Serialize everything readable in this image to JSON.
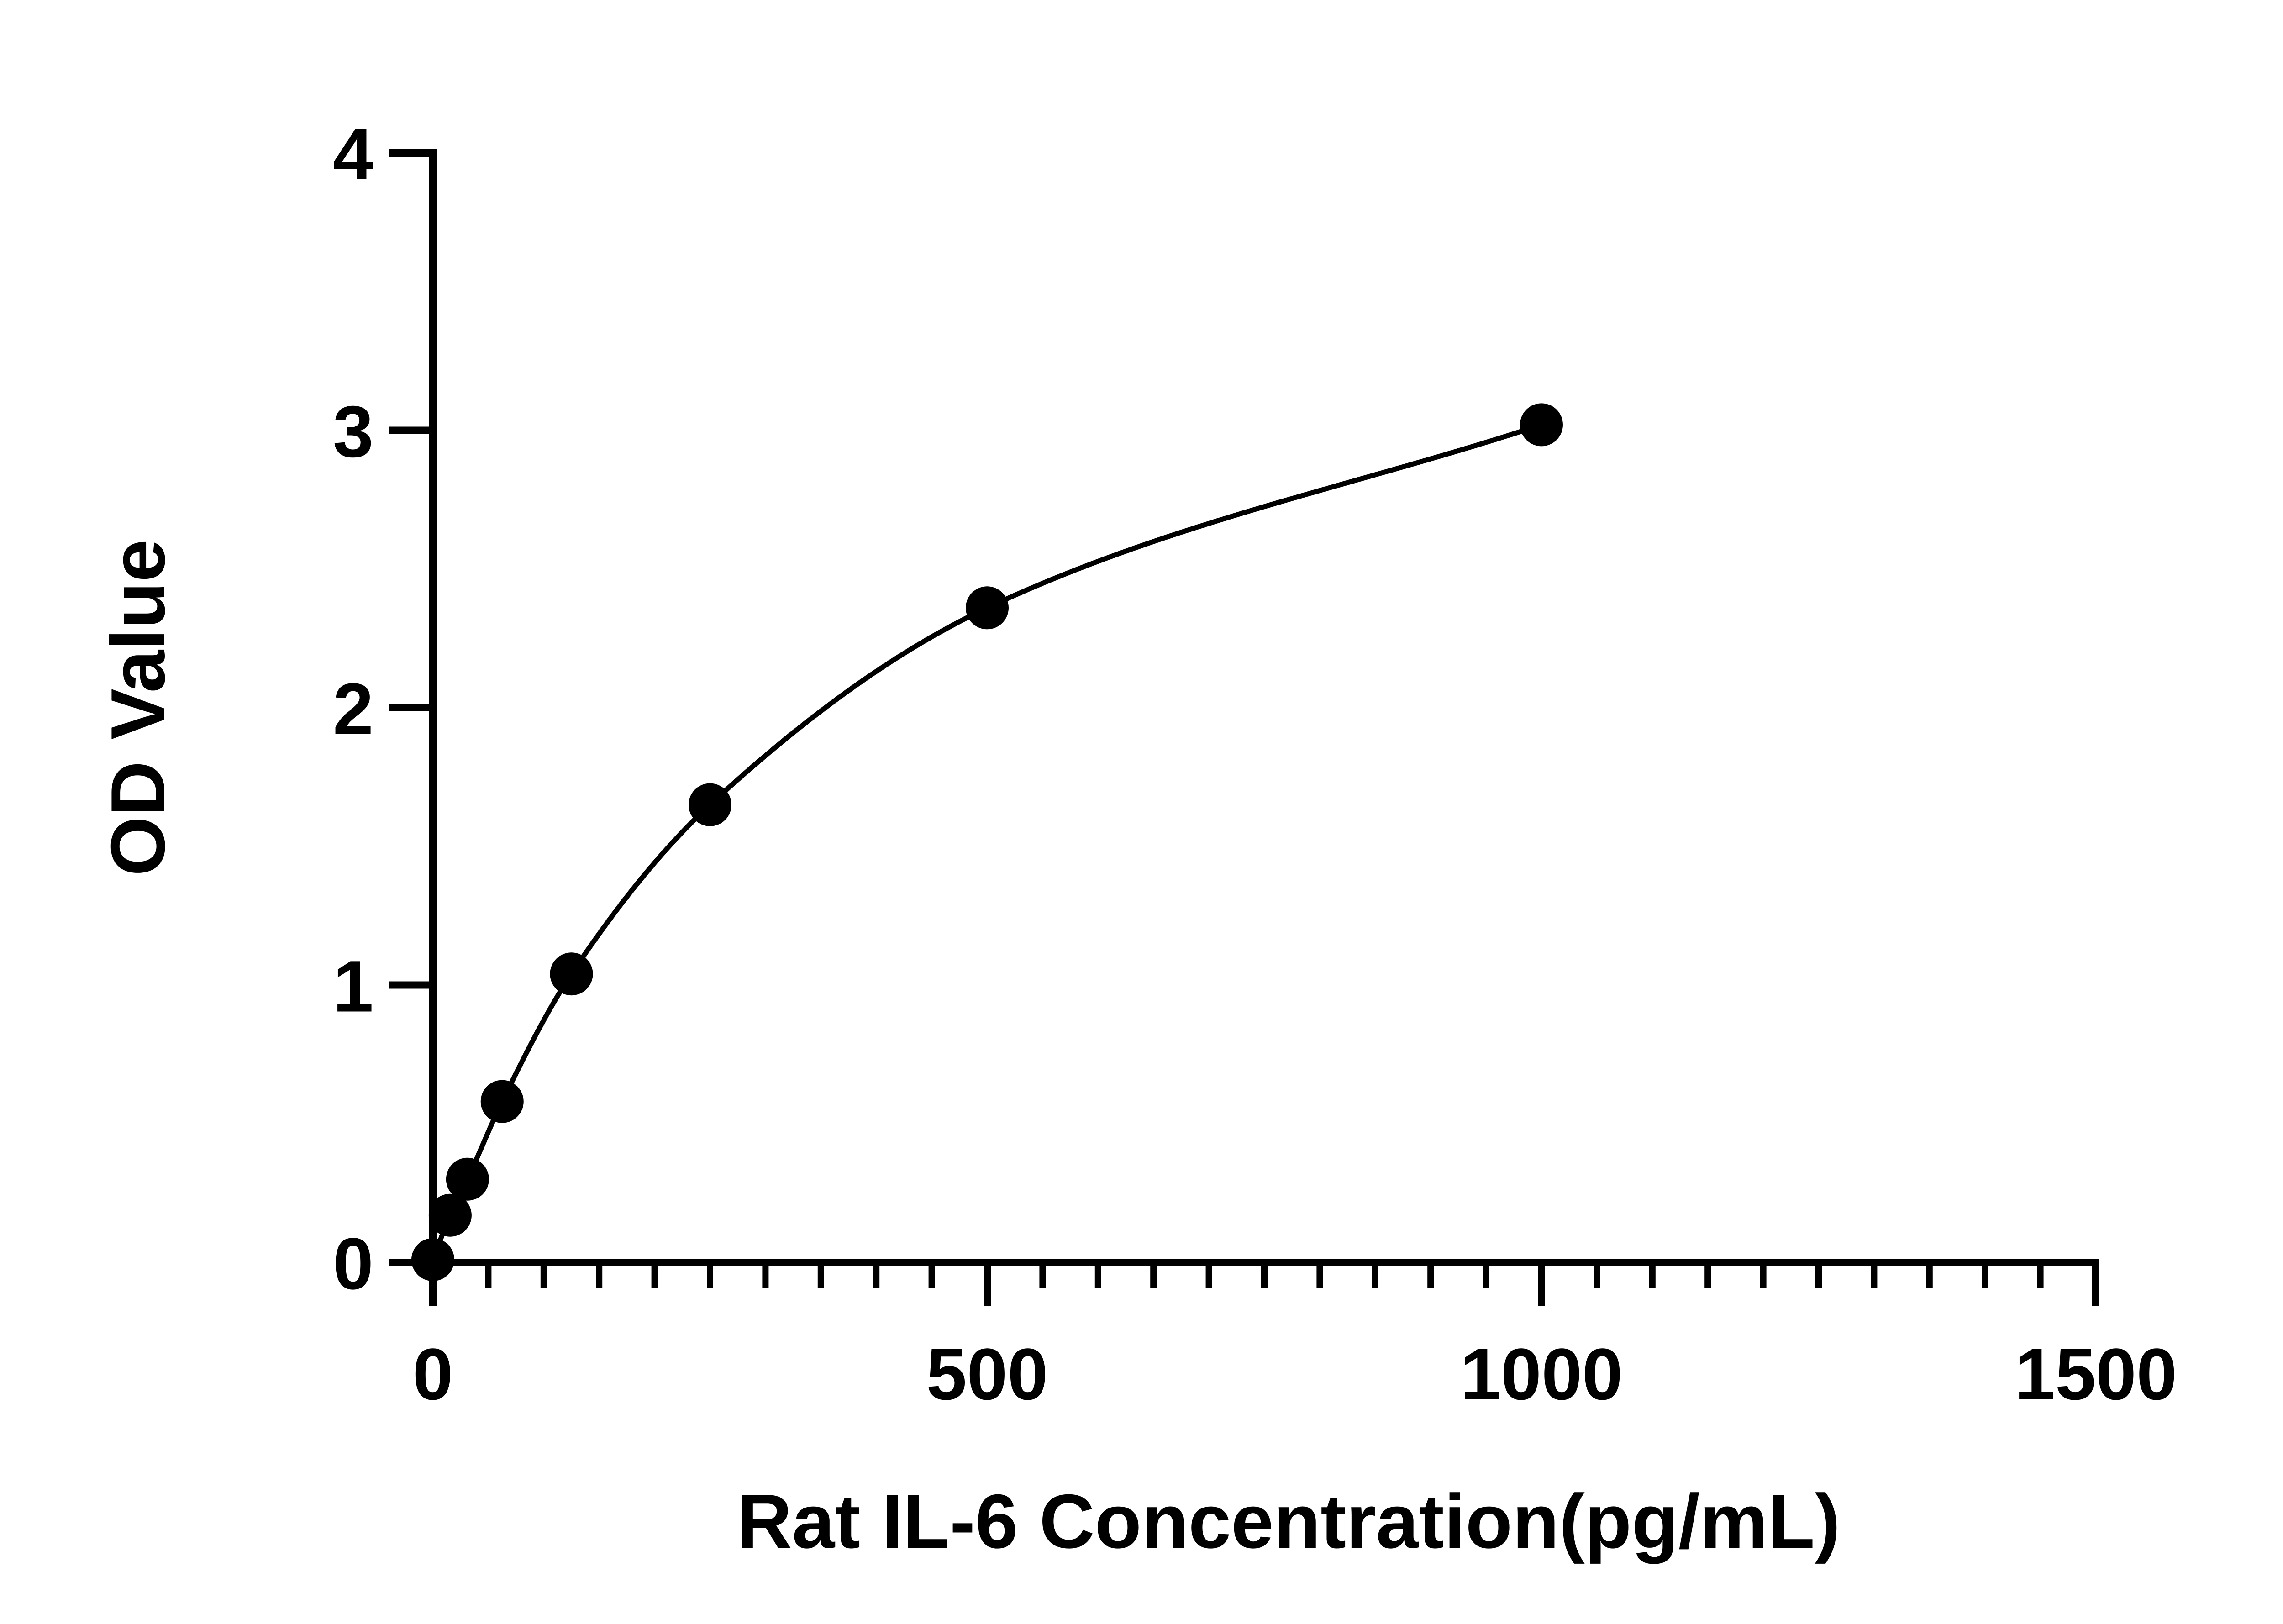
{
  "chart_data": {
    "type": "scatter",
    "xlabel": "Rat IL-6 Concentration(pg/mL)",
    "ylabel": "OD Value",
    "xlim": [
      0,
      1500
    ],
    "ylim": [
      0,
      4
    ],
    "x_ticks": [
      0,
      500,
      1000,
      1500
    ],
    "x_tick_labels": [
      "0",
      "500",
      "1000",
      "1500"
    ],
    "x_minor_step": 50,
    "y_ticks": [
      0,
      1,
      2,
      3,
      4
    ],
    "y_tick_labels": [
      "0",
      "1",
      "2",
      "3",
      "4"
    ],
    "grid": false,
    "series": [
      {
        "points": [
          {
            "x": 0,
            "y": 0.01
          },
          {
            "x": 15.6,
            "y": 0.17
          },
          {
            "x": 31.25,
            "y": 0.3
          },
          {
            "x": 62.5,
            "y": 0.58
          },
          {
            "x": 125,
            "y": 1.04
          },
          {
            "x": 250,
            "y": 1.65
          },
          {
            "x": 500,
            "y": 2.36
          },
          {
            "x": 1000,
            "y": 3.02
          }
        ],
        "marker": "filled-circle",
        "fit_curve": "smooth",
        "color": "#000000"
      }
    ]
  }
}
